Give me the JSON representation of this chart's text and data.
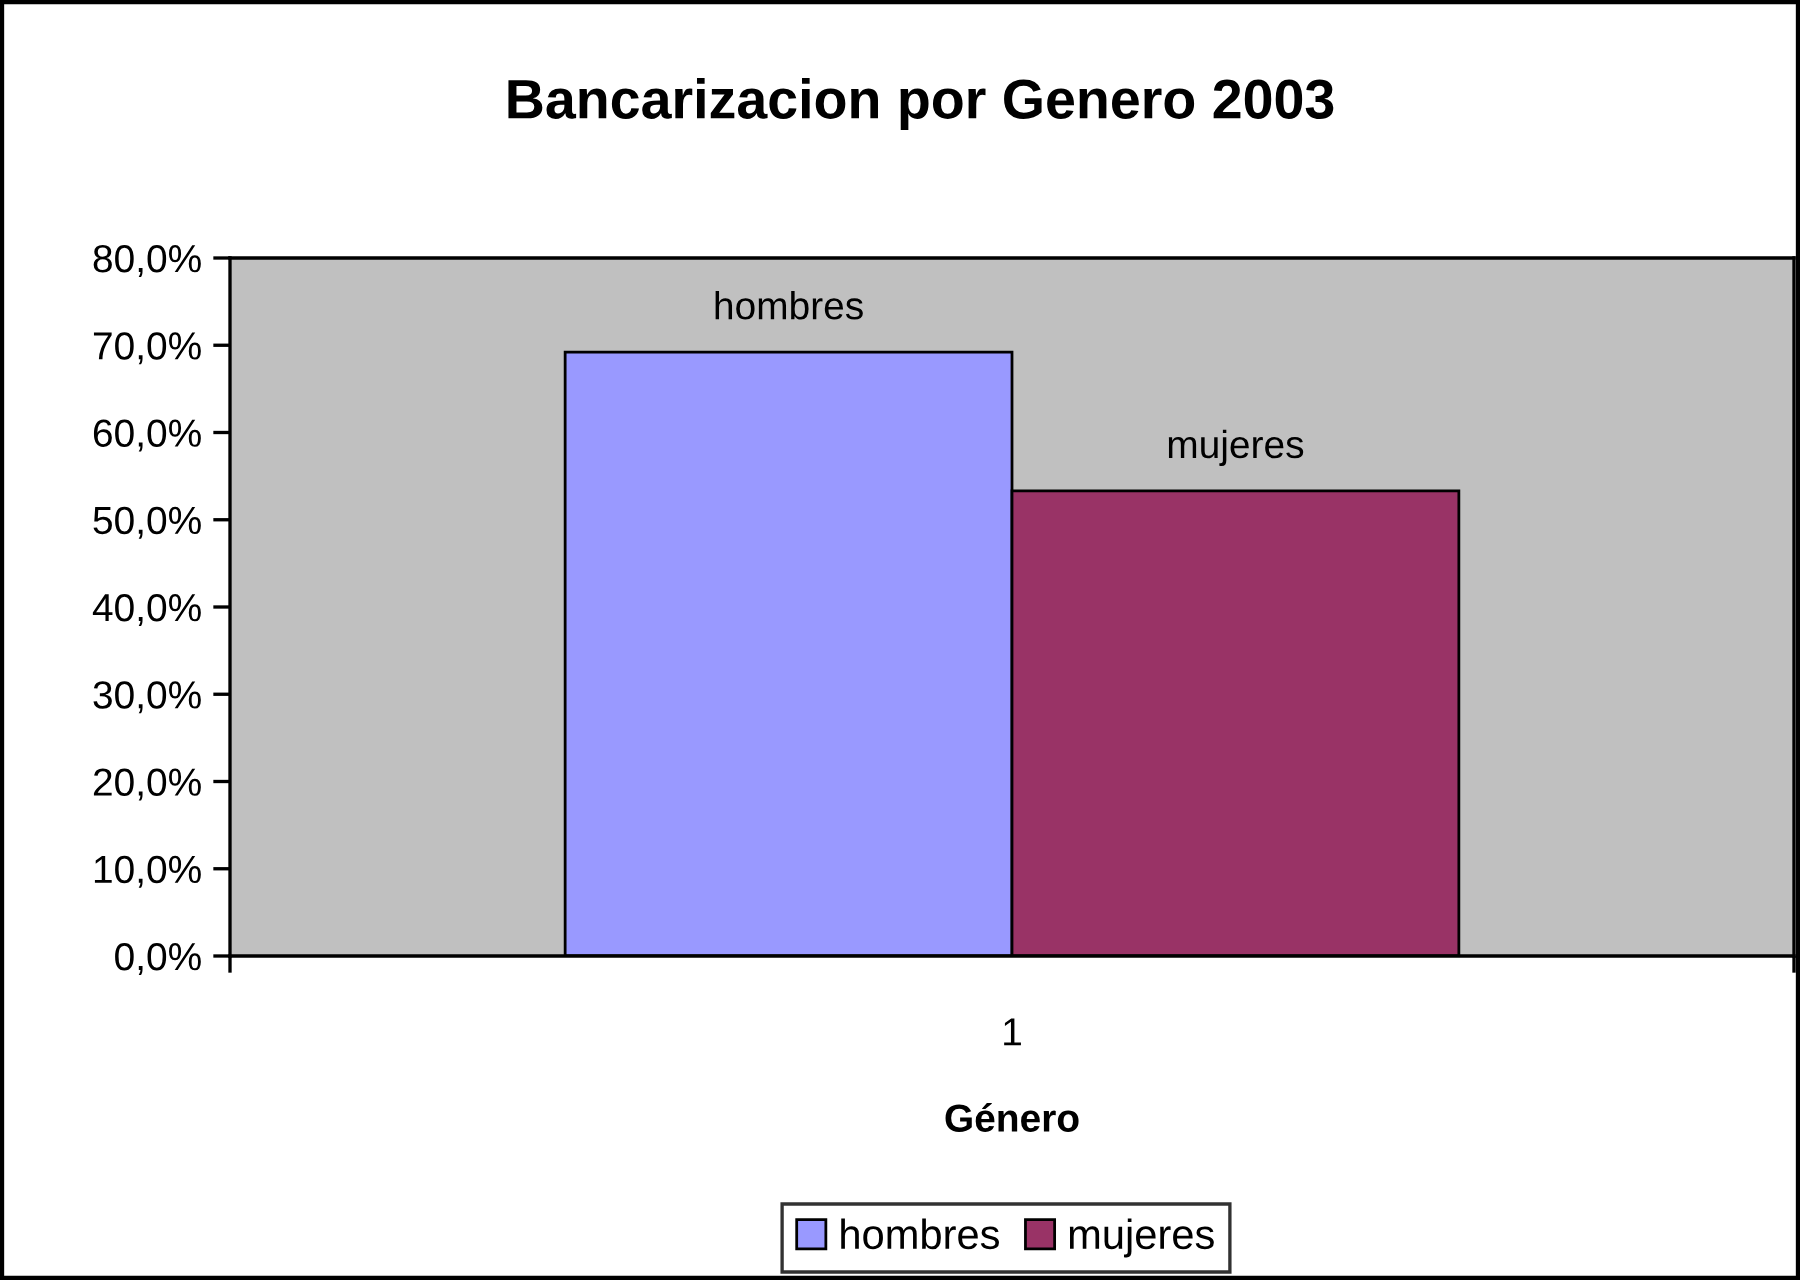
{
  "chart_data": {
    "type": "bar",
    "title": "Bancarizacion por Genero 2003",
    "xlabel": "Género",
    "categories": [
      "1"
    ],
    "series": [
      {
        "name": "hombres",
        "color": "#9999ff",
        "values": [
          69.2
        ],
        "value_labels": [
          "hombres"
        ]
      },
      {
        "name": "mujeres",
        "color": "#993366",
        "values": [
          53.3
        ],
        "value_labels": [
          "mujeres"
        ]
      }
    ],
    "ylim": [
      0,
      80
    ],
    "yticks": [
      {
        "value": 0,
        "label": "0,0%"
      },
      {
        "value": 10,
        "label": "10,0%"
      },
      {
        "value": 20,
        "label": "20,0%"
      },
      {
        "value": 30,
        "label": "30,0%"
      },
      {
        "value": 40,
        "label": "40,0%"
      },
      {
        "value": 50,
        "label": "50,0%"
      },
      {
        "value": 60,
        "label": "60,0%"
      },
      {
        "value": 70,
        "label": "70,0%"
      },
      {
        "value": 80,
        "label": "80,0%"
      }
    ],
    "legend": "bottom"
  }
}
